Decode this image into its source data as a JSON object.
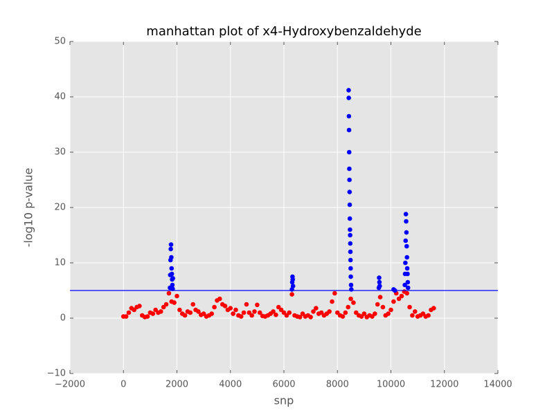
{
  "chart_data": {
    "type": "scatter",
    "title": "manhattan plot of x4-Hydroxybenzaldehyde",
    "x_label": "snp",
    "y_label": "-log10 p-value",
    "xlim": [
      -2000,
      14000
    ],
    "xticks": [
      {
        "value": -2000,
        "label": "−2000"
      },
      0,
      2000,
      4000,
      6000,
      8000,
      10000,
      12000,
      14000
    ],
    "ylim": [
      -10,
      50
    ],
    "yticks": [
      {
        "value": -10,
        "label": "−10"
      },
      0,
      10,
      20,
      30,
      40,
      50
    ],
    "grid": true,
    "background": "#e5e5e5",
    "hline": {
      "value": 5,
      "color": "#0000ff"
    },
    "series": [
      {
        "color": "#ff0000",
        "x": [
          0,
          100,
          200,
          300,
          400,
          500,
          600,
          700,
          800,
          900,
          1000,
          1100,
          1200,
          1300,
          1400,
          1500,
          1600,
          1700,
          1800,
          1900,
          2000,
          2100,
          2200,
          2300,
          2400,
          2500,
          2600,
          2700,
          2800,
          2900,
          3000,
          3100,
          3200,
          3300,
          3400,
          3500,
          3600,
          3700,
          3800,
          3900,
          4000,
          4100,
          4200,
          4300,
          4400,
          4500,
          4600,
          4700,
          4800,
          4900,
          5000,
          5100,
          5200,
          5300,
          5400,
          5500,
          5600,
          5700,
          5800,
          5900,
          6000,
          6100,
          6200,
          6300,
          6400,
          6500,
          6600,
          6700,
          6800,
          6900,
          7000,
          7100,
          7200,
          7300,
          7400,
          7500,
          7600,
          7700,
          7800,
          7900,
          8000,
          8100,
          8200,
          8300,
          8400,
          8500,
          8600,
          8700,
          8800,
          8900,
          9000,
          9100,
          9200,
          9300,
          9400,
          9500,
          9600,
          9700,
          9800,
          9900,
          10000,
          10100,
          10200,
          10300,
          10400,
          10500,
          10600,
          10700,
          10800,
          10900,
          11000,
          11100,
          11200,
          11300,
          11400,
          11500,
          11600
        ],
        "values": [
          0.3,
          0.3,
          1.0,
          1.8,
          1.5,
          2.0,
          2.2,
          0.5,
          0.2,
          0.3,
          1.0,
          0.8,
          1.5,
          1.0,
          1.2,
          2.0,
          2.5,
          4.5,
          3.0,
          2.8,
          4.0,
          1.5,
          0.8,
          0.5,
          1.2,
          1.0,
          2.5,
          1.5,
          1.2,
          0.6,
          0.8,
          0.3,
          0.5,
          0.8,
          2.0,
          3.2,
          3.5,
          2.5,
          2.2,
          1.5,
          1.8,
          0.8,
          1.5,
          0.5,
          0.3,
          1.0,
          2.5,
          1.0,
          0.5,
          1.2,
          2.4,
          1.0,
          0.4,
          0.3,
          0.5,
          0.8,
          1.2,
          0.6,
          2.0,
          1.5,
          1.0,
          0.5,
          1.0,
          4.3,
          0.5,
          0.3,
          0.2,
          0.8,
          0.3,
          0.5,
          0.2,
          1.2,
          1.8,
          0.8,
          1.0,
          0.5,
          0.8,
          1.2,
          3.0,
          4.5,
          1.0,
          0.5,
          0.3,
          1.0,
          2.0,
          3.5,
          2.8,
          1.0,
          0.5,
          0.3,
          0.8,
          0.2,
          0.5,
          0.3,
          0.8,
          2.5,
          3.8,
          2.0,
          0.5,
          0.8,
          1.5,
          3.0,
          4.5,
          3.5,
          4.0,
          4.8,
          4.5,
          2.0,
          0.5,
          1.2,
          0.3,
          0.5,
          0.8,
          0.3,
          0.5,
          1.5,
          1.8
        ]
      },
      {
        "color": "#0000ff",
        "x": [
          1740,
          1750,
          1760,
          1770,
          1780,
          1790,
          1800,
          1810,
          1820,
          1830,
          1840,
          1850,
          6300,
          6310,
          6320,
          6330,
          6340,
          8420,
          8425,
          8430,
          8435,
          8440,
          8445,
          8450,
          8455,
          8460,
          8465,
          8470,
          8475,
          8480,
          8485,
          8490,
          8495,
          8500,
          8510,
          8520,
          9550,
          9560,
          9570,
          9580,
          10100,
          10150,
          10520,
          10530,
          10540,
          10550,
          10560,
          10570,
          10580,
          10590,
          10600,
          10610,
          10620,
          10630,
          10640
        ],
        "values": [
          5.5,
          7.8,
          10.5,
          12.5,
          13.3,
          11.0,
          9.0,
          8.0,
          7.0,
          6.0,
          5.3,
          7.2,
          5.2,
          6.5,
          7.5,
          7.0,
          5.8,
          41.2,
          39.8,
          36.5,
          34.0,
          30.0,
          27.0,
          25.0,
          22.8,
          20.5,
          18.0,
          16.0,
          15.0,
          13.5,
          12.0,
          10.5,
          9.0,
          7.5,
          6.0,
          5.2,
          5.5,
          7.3,
          6.5,
          5.8,
          5.2,
          5.0,
          6.0,
          8.0,
          10.0,
          14.0,
          18.8,
          17.5,
          15.5,
          13.0,
          11.0,
          9.0,
          8.0,
          6.5,
          5.5
        ]
      }
    ]
  }
}
